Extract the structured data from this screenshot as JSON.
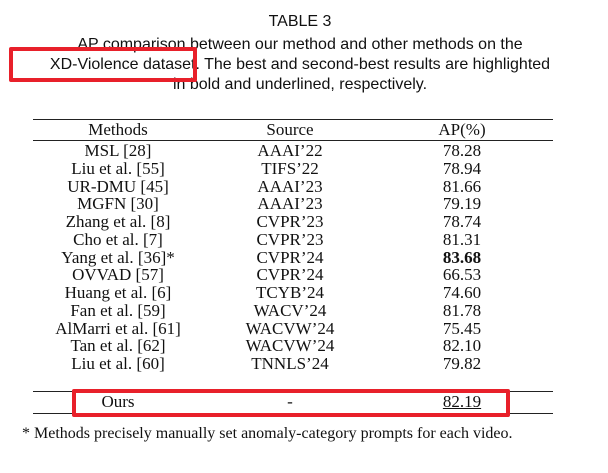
{
  "caption": {
    "label": "TABLE 3",
    "lines": [
      "AP comparison between our method and other methods on the",
      "XD-Violence dataset. The best and second-best results are highlighted",
      "in bold and underlined, respectively."
    ]
  },
  "table": {
    "header": [
      "Methods",
      "Source",
      "AP(%)"
    ],
    "rows": [
      [
        "MSL [28]",
        "AAAI’22",
        "78.28"
      ],
      [
        "Liu et al. [55]",
        "TIFS’22",
        "78.94"
      ],
      [
        "UR-DMU [45]",
        "AAAI’23",
        "81.66"
      ],
      [
        "MGFN [30]",
        "AAAI’23",
        "79.19"
      ],
      [
        "Zhang et al. [8]",
        "CVPR’23",
        "78.74"
      ],
      [
        "Cho et al. [7]",
        "CVPR’23",
        "81.31"
      ],
      [
        "Yang et al. [36]*",
        "CVPR’24",
        "83.68"
      ],
      [
        "OVVAD [57]",
        "CVPR’24",
        "66.53"
      ],
      [
        "Huang et al. [6]",
        "TCYB’24",
        "74.60"
      ],
      [
        "Fan et al. [59]",
        "WACV’24",
        "81.78"
      ],
      [
        "AlMarri et al. [61]",
        "WACVW’24",
        "75.45"
      ],
      [
        "Tan et al. [62]",
        "WACVW’24",
        "82.10"
      ],
      [
        "Liu et al. [60]",
        "TNNLS’24",
        "79.82"
      ],
      [
        "Ours",
        "-",
        "82.19"
      ]
    ]
  },
  "footnote": "* Methods precisely manually set anomaly-category prompts for each video."
}
